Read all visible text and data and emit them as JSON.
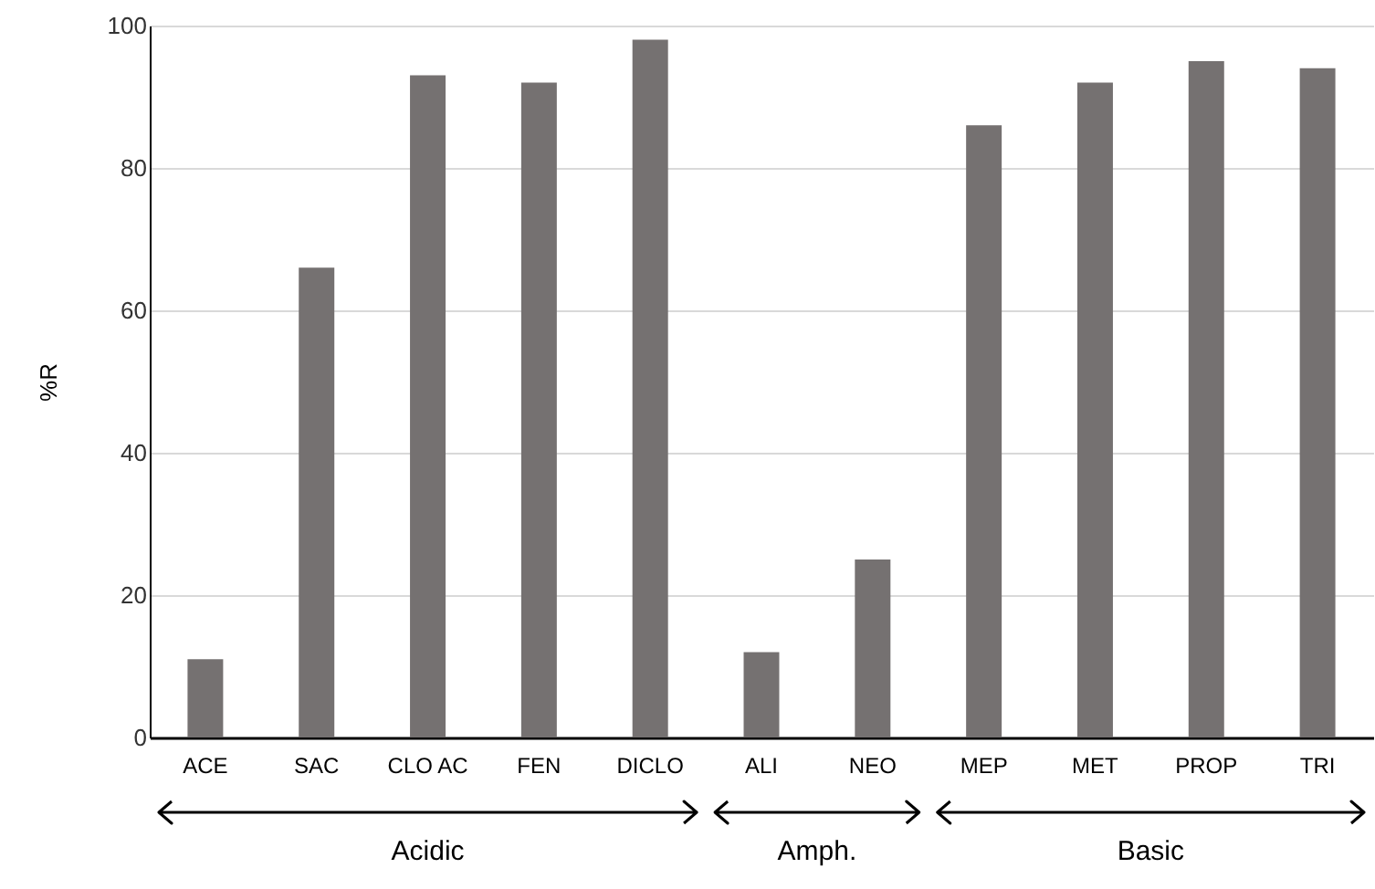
{
  "chart_data": {
    "type": "bar",
    "ylabel": "%R",
    "categories": [
      "ACE",
      "SAC",
      "CLO AC",
      "FEN",
      "DICLO",
      "ALI",
      "NEO",
      "MEP",
      "MET",
      "PROP",
      "TRI"
    ],
    "values": [
      11,
      66,
      93,
      92,
      98,
      12,
      25,
      86,
      92,
      95,
      94
    ],
    "color": "#757171",
    "ylim": [
      0,
      100
    ],
    "yticks": [
      0,
      20,
      40,
      60,
      80,
      100
    ],
    "grid": "y",
    "annotations": [
      "Acidic",
      "Amph.",
      "Basic"
    ]
  }
}
